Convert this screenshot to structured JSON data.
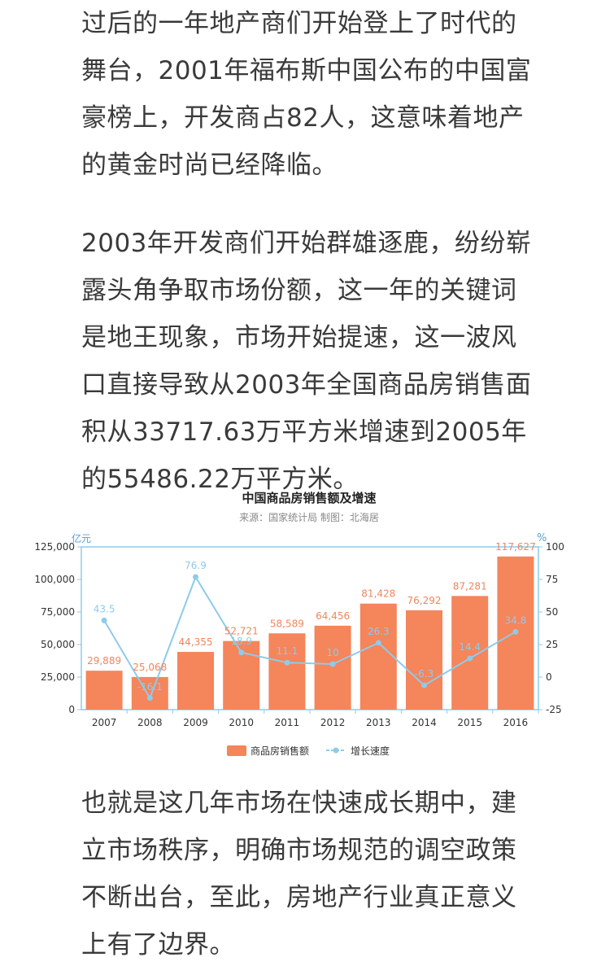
{
  "article": {
    "p1": "过后的一年地产商们开始登上了时代的舞台，2001年福布斯中国公布的中国富豪榜上，开发商占82人，这意味着地产的黄金时尚已经降临。",
    "p2": "2003年开发商们开始群雄逐鹿，纷纷崭露头角争取市场份额，这一年的关键词是地王现象，市场开始提速，这一波风口直接导致从2003年全国商品房销售面积从33717.63万平方米增速到2005年的55486.22万平方米。",
    "p3": "也就是这几年市场在快速成长期中，建立市场秩序，明确市场规范的调空政策不断出台，至此，房地产行业真正意义上有了边界。"
  },
  "chart_data": {
    "type": "bar",
    "title": "中国商品房销售额及增速",
    "subtitle": "来源：国家统计局 制图：北海居",
    "left_unit": "亿元",
    "right_unit": "%",
    "categories": [
      "2007",
      "2008",
      "2009",
      "2010",
      "2011",
      "2012",
      "2013",
      "2014",
      "2015",
      "2016"
    ],
    "series": [
      {
        "name": "商品房销售额",
        "type": "bar",
        "axis": "left",
        "color": "#f5855a",
        "values": [
          29889,
          25068,
          44355,
          52721,
          58589,
          64456,
          81428,
          76292,
          87281,
          117627
        ],
        "labels": [
          "29,889",
          "25,068",
          "44,355",
          "52,721",
          "58,589",
          "64,456",
          "81,428",
          "76,292",
          "87,281",
          "117,627"
        ]
      },
      {
        "name": "增长速度",
        "type": "line",
        "axis": "right",
        "color": "#8ecbea",
        "values": [
          43.5,
          -16.1,
          76.9,
          18.9,
          11.1,
          10,
          26.3,
          -6.3,
          14.4,
          34.8
        ],
        "labels": [
          "43.5",
          "-16.1",
          "76.9",
          "18.9",
          "11.1",
          "10",
          "26.3",
          "-6.3",
          "14.4",
          "34.8"
        ]
      }
    ],
    "left_axis": {
      "range": [
        0,
        125000
      ],
      "ticks": [
        0,
        25000,
        50000,
        75000,
        100000,
        125000
      ],
      "tick_labels": [
        "0",
        "25,000",
        "50,000",
        "75,000",
        "100,000",
        "125,000"
      ]
    },
    "right_axis": {
      "range": [
        -25,
        100
      ],
      "ticks": [
        -25,
        0,
        25,
        50,
        75,
        100
      ],
      "tick_labels": [
        "-25",
        "0",
        "25",
        "50",
        "75",
        "100"
      ]
    },
    "legend": {
      "position": "bottom",
      "items": [
        "商品房销售额",
        "增长速度"
      ]
    },
    "grid": false,
    "frame_color": "#8ecbea"
  }
}
